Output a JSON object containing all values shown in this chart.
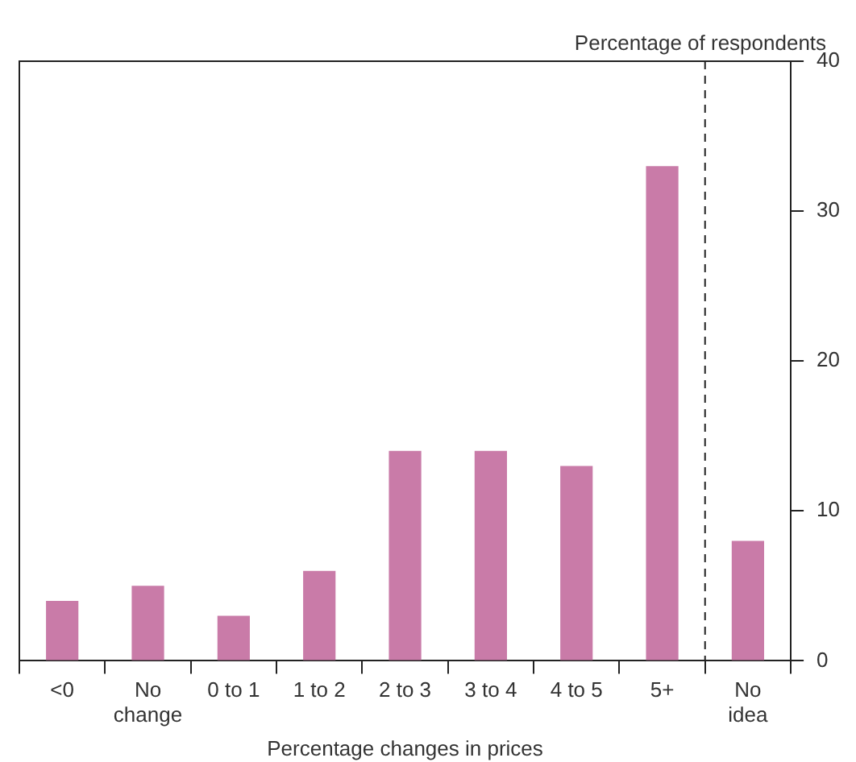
{
  "chart_data": {
    "type": "bar",
    "xlabel": "Percentage changes in prices",
    "ylabel": "Percentage of respondents",
    "categories": [
      "<0",
      "No\nchange",
      "0 to 1",
      "1 to 2",
      "2 to 3",
      "3 to 4",
      "4 to 5",
      "5+",
      "No\nidea"
    ],
    "values": [
      4,
      5,
      3,
      6,
      14,
      14,
      13,
      33,
      8
    ],
    "color": "#c97ba8",
    "ylim": [
      0,
      40
    ],
    "yticks": [
      0,
      10,
      20,
      30,
      40
    ],
    "grid": false
  }
}
